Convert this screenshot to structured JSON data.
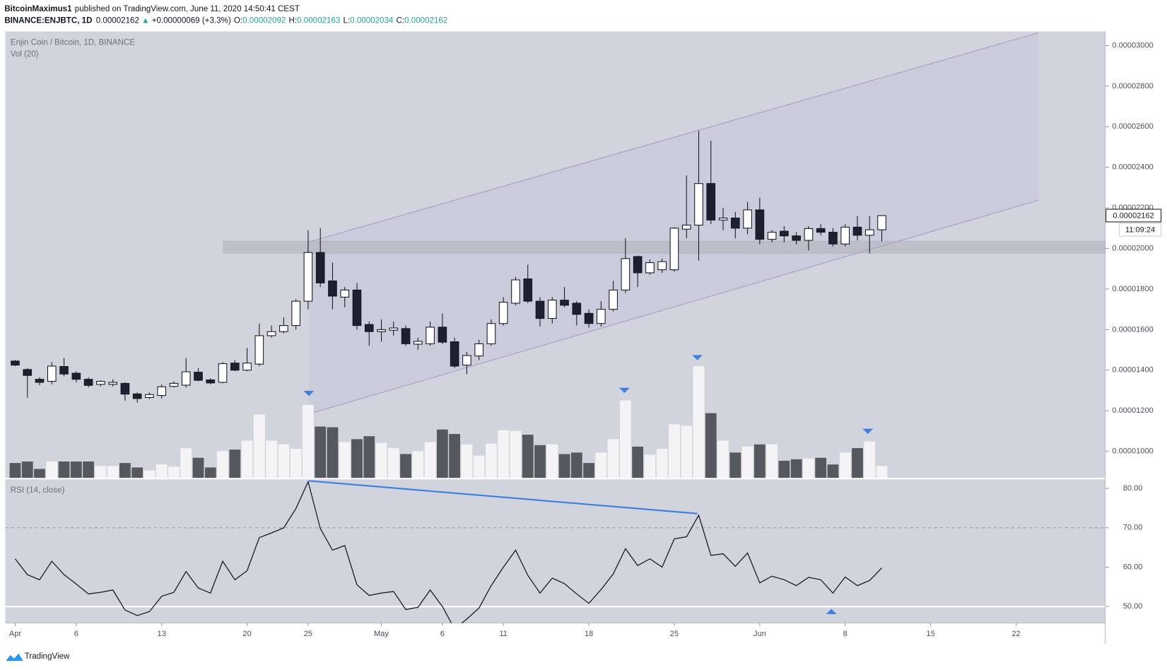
{
  "header": {
    "author": "BitcoinMaximus1",
    "published": "published on TradingView.com, June 11, 2020 14:50:41 CEST",
    "symbol": "BINANCE:ENJBTC, 1D",
    "last": "0.00002162",
    "arrow": "▲",
    "change": "+0.00000069 (+3.3%)",
    "quote": [
      {
        "label": "O:",
        "value": "0.00002092"
      },
      {
        "label": "H:",
        "value": "0.00002163"
      },
      {
        "label": "L:",
        "value": "0.00002034"
      },
      {
        "label": "C:",
        "value": "0.00002162"
      }
    ],
    "price_label": "0.00002162",
    "countdown": "11:09:24"
  },
  "footer": {
    "brand": "TradingView"
  },
  "chart_data": {
    "type": "candlestick",
    "title": "Enjin Coin / Bitcoin, 1D, BINANCE",
    "x": [
      "2020-04-01",
      "2020-04-02",
      "2020-04-03",
      "2020-04-04",
      "2020-04-05",
      "2020-04-06",
      "2020-04-07",
      "2020-04-08",
      "2020-04-09",
      "2020-04-10",
      "2020-04-11",
      "2020-04-12",
      "2020-04-13",
      "2020-04-14",
      "2020-04-15",
      "2020-04-16",
      "2020-04-17",
      "2020-04-18",
      "2020-04-19",
      "2020-04-20",
      "2020-04-21",
      "2020-04-22",
      "2020-04-23",
      "2020-04-24",
      "2020-04-25",
      "2020-04-26",
      "2020-04-27",
      "2020-04-28",
      "2020-04-29",
      "2020-04-30",
      "2020-05-01",
      "2020-05-02",
      "2020-05-03",
      "2020-05-04",
      "2020-05-05",
      "2020-05-06",
      "2020-05-07",
      "2020-05-08",
      "2020-05-09",
      "2020-05-10",
      "2020-05-11",
      "2020-05-12",
      "2020-05-13",
      "2020-05-14",
      "2020-05-15",
      "2020-05-16",
      "2020-05-17",
      "2020-05-18",
      "2020-05-19",
      "2020-05-20",
      "2020-05-21",
      "2020-05-22",
      "2020-05-23",
      "2020-05-24",
      "2020-05-25",
      "2020-05-26",
      "2020-05-27",
      "2020-05-28",
      "2020-05-29",
      "2020-05-30",
      "2020-05-31",
      "2020-06-01",
      "2020-06-02",
      "2020-06-03",
      "2020-06-04",
      "2020-06-05",
      "2020-06-06",
      "2020-06-07",
      "2020-06-08",
      "2020-06-09",
      "2020-06-10",
      "2020-06-11"
    ],
    "open": [
      1.445e-05,
      1.403e-05,
      1.355e-05,
      1.345e-05,
      1.418e-05,
      1.385e-05,
      1.355e-05,
      1.33e-05,
      1.33e-05,
      1.335e-05,
      1.283e-05,
      1.265e-05,
      1.275e-05,
      1.32e-05,
      1.326e-05,
      1.39e-05,
      1.352e-05,
      1.34e-05,
      1.435e-05,
      1.4e-05,
      1.43e-05,
      1.57e-05,
      1.59e-05,
      1.62e-05,
      1.74e-05,
      1.98e-05,
      1.84e-05,
      1.76e-05,
      1.795e-05,
      1.625e-05,
      1.59e-05,
      1.597e-05,
      1.605e-05,
      1.528e-05,
      1.53e-05,
      1.612e-05,
      1.54e-05,
      1.425e-05,
      1.47e-05,
      1.53e-05,
      1.63e-05,
      1.73e-05,
      1.85e-05,
      1.74e-05,
      1.655e-05,
      1.745e-05,
      1.73e-05,
      1.68e-05,
      1.63e-05,
      1.7e-05,
      1.795e-05,
      1.96e-05,
      1.88e-05,
      1.895e-05,
      1.895e-05,
      2.095e-05,
      2.115e-05,
      2.32e-05,
      2.14e-05,
      2.15e-05,
      2.1e-05,
      2.19e-05,
      2.045e-05,
      2.085e-05,
      2.062e-05,
      2.04e-05,
      2.098e-05,
      2.08e-05,
      2.022e-05,
      2.105e-05,
      2.065e-05,
      2.092e-05
    ],
    "high": [
      1.45e-05,
      1.41e-05,
      1.365e-05,
      1.44e-05,
      1.46e-05,
      1.395e-05,
      1.365e-05,
      1.35e-05,
      1.355e-05,
      1.34e-05,
      1.29e-05,
      1.29e-05,
      1.33e-05,
      1.345e-05,
      1.46e-05,
      1.41e-05,
      1.36e-05,
      1.44e-05,
      1.45e-05,
      1.51e-05,
      1.63e-05,
      1.62e-05,
      1.66e-05,
      1.75e-05,
      2.09e-05,
      2.1e-05,
      1.93e-05,
      1.81e-05,
      1.83e-05,
      1.64e-05,
      1.65e-05,
      1.64e-05,
      1.62e-05,
      1.56e-05,
      1.64e-05,
      1.68e-05,
      1.56e-05,
      1.49e-05,
      1.55e-05,
      1.65e-05,
      1.76e-05,
      1.86e-05,
      1.92e-05,
      1.76e-05,
      1.76e-05,
      1.81e-05,
      1.74e-05,
      1.7e-05,
      1.74e-05,
      1.84e-05,
      2.05e-05,
      1.965e-05,
      1.945e-05,
      1.95e-05,
      2.105e-05,
      2.36e-05,
      2.58e-05,
      2.53e-05,
      2.2e-05,
      2.18e-05,
      2.23e-05,
      2.25e-05,
      2.09e-05,
      2.11e-05,
      2.08e-05,
      2.11e-05,
      2.12e-05,
      2.1e-05,
      2.12e-05,
      2.16e-05,
      2.16e-05,
      2.163e-05
    ],
    "low": [
      1.42e-05,
      1.264e-05,
      1.325e-05,
      1.33e-05,
      1.37e-05,
      1.34e-05,
      1.315e-05,
      1.32e-05,
      1.32e-05,
      1.25e-05,
      1.24e-05,
      1.258e-05,
      1.26e-05,
      1.315e-05,
      1.315e-05,
      1.345e-05,
      1.33e-05,
      1.335e-05,
      1.395e-05,
      1.395e-05,
      1.42e-05,
      1.56e-05,
      1.58e-05,
      1.6e-05,
      1.7e-05,
      1.81e-05,
      1.7e-05,
      1.71e-05,
      1.6e-05,
      1.52e-05,
      1.54e-05,
      1.57e-05,
      1.52e-05,
      1.5e-05,
      1.52e-05,
      1.53e-05,
      1.41e-05,
      1.38e-05,
      1.45e-05,
      1.52e-05,
      1.62e-05,
      1.72e-05,
      1.73e-05,
      1.615e-05,
      1.63e-05,
      1.71e-05,
      1.62e-05,
      1.61e-05,
      1.615e-05,
      1.69e-05,
      1.78e-05,
      1.81e-05,
      1.87e-05,
      1.88e-05,
      1.885e-05,
      2.05e-05,
      1.94e-05,
      2.12e-05,
      2.09e-05,
      2.05e-05,
      2.07e-05,
      2.02e-05,
      2.03e-05,
      2.03e-05,
      2.02e-05,
      1.99e-05,
      2.065e-05,
      2.01e-05,
      2.01e-05,
      2.04e-05,
      1.975e-05,
      2.034e-05
    ],
    "close": [
      1.425e-05,
      1.374e-05,
      1.34e-05,
      1.42e-05,
      1.381e-05,
      1.355e-05,
      1.325e-05,
      1.345e-05,
      1.34e-05,
      1.282e-05,
      1.26e-05,
      1.28e-05,
      1.318e-05,
      1.335e-05,
      1.392e-05,
      1.35e-05,
      1.337e-05,
      1.432e-05,
      1.4e-05,
      1.435e-05,
      1.57e-05,
      1.59e-05,
      1.62e-05,
      1.74e-05,
      1.98e-05,
      1.83e-05,
      1.765e-05,
      1.795e-05,
      1.62e-05,
      1.59e-05,
      1.6e-05,
      1.608e-05,
      1.53e-05,
      1.542e-05,
      1.612e-05,
      1.538e-05,
      1.42e-05,
      1.472e-05,
      1.53e-05,
      1.63e-05,
      1.735e-05,
      1.845e-05,
      1.74e-05,
      1.655e-05,
      1.745e-05,
      1.72e-05,
      1.675e-05,
      1.63e-05,
      1.7e-05,
      1.795e-05,
      1.95e-05,
      1.88e-05,
      1.93e-05,
      1.935e-05,
      2.1e-05,
      2.115e-05,
      2.32e-05,
      2.14e-05,
      2.15e-05,
      2.1e-05,
      2.19e-05,
      2.045e-05,
      2.08e-05,
      2.062e-05,
      2.04e-05,
      2.098e-05,
      2.08e-05,
      2.022e-05,
      2.105e-05,
      2.065e-05,
      2.092e-05,
      2.162e-05
    ],
    "up_color": "#ffffff",
    "down_color": "#1e2030",
    "xlim": [
      "2020-03-31",
      "2020-06-29"
    ],
    "xticks": [
      {
        "value": "2020-04-01",
        "label": "Apr"
      },
      {
        "value": "2020-04-06",
        "label": "6"
      },
      {
        "value": "2020-04-13",
        "label": "13"
      },
      {
        "value": "2020-04-20",
        "label": "20"
      },
      {
        "value": "2020-04-25",
        "label": "25"
      },
      {
        "value": "2020-05-01",
        "label": "May"
      },
      {
        "value": "2020-05-06",
        "label": "6"
      },
      {
        "value": "2020-05-11",
        "label": "11"
      },
      {
        "value": "2020-05-18",
        "label": "18"
      },
      {
        "value": "2020-05-25",
        "label": "25"
      },
      {
        "value": "2020-06-01",
        "label": "Jun"
      },
      {
        "value": "2020-06-08",
        "label": "8"
      },
      {
        "value": "2020-06-15",
        "label": "15"
      },
      {
        "value": "2020-06-22",
        "label": "22"
      }
    ],
    "ylim": [
      8.69e-06,
      3.07e-05
    ],
    "yticks": [
      {
        "value": 3e-05,
        "label": "0.00003000"
      },
      {
        "value": 2.8e-05,
        "label": "0.00002800"
      },
      {
        "value": 2.6e-05,
        "label": "0.00002600"
      },
      {
        "value": 2.4e-05,
        "label": "0.00002400"
      },
      {
        "value": 2.2e-05,
        "label": "0.00002200"
      },
      {
        "value": 2e-05,
        "label": "0.00002000"
      },
      {
        "value": 1.8e-05,
        "label": "0.00001800"
      },
      {
        "value": 1.6e-05,
        "label": "0.00001600"
      },
      {
        "value": 1.4e-05,
        "label": "0.00001400"
      },
      {
        "value": 1.2e-05,
        "label": "0.00001200"
      },
      {
        "value": 1e-05,
        "label": "0.00001000"
      }
    ],
    "volume": {
      "title": "Vol (20)",
      "up_color": "#f4f4f6",
      "down_color": "#55585f",
      "values": [
        20,
        22,
        12,
        22,
        22,
        22,
        22,
        16,
        16,
        20,
        14,
        10,
        18,
        15,
        40,
        27,
        14,
        36,
        38,
        50,
        85,
        50,
        45,
        39,
        98,
        69,
        68,
        48,
        52,
        56,
        47,
        40,
        32,
        36,
        48,
        65,
        59,
        45,
        30,
        46,
        64,
        63,
        58,
        44,
        45,
        32,
        34,
        20,
        34,
        52,
        104,
        42,
        31,
        39,
        72,
        70,
        150,
        87,
        50,
        34,
        42,
        45,
        45,
        23,
        25,
        26,
        27,
        18,
        34,
        40,
        49,
        16
      ]
    },
    "rsi": {
      "title": "RSI (14, close)",
      "color": "#131722",
      "values": [
        62.1,
        58.1,
        56.8,
        61.5,
        58.1,
        55.7,
        53.2,
        53.6,
        54.2,
        49.1,
        47.7,
        48.7,
        52.6,
        53.6,
        58.9,
        54.7,
        53.4,
        61.5,
        56.8,
        59.1,
        67.5,
        68.7,
        70.0,
        74.9,
        81.7,
        69.8,
        64.3,
        65.5,
        55.5,
        52.8,
        53.4,
        53.8,
        49.2,
        49.8,
        54.2,
        50.0,
        44.3,
        46.8,
        49.6,
        55.3,
        60.0,
        64.3,
        57.9,
        53.4,
        57.2,
        55.8,
        53.2,
        50.8,
        54.3,
        58.3,
        64.7,
        60.4,
        62.1,
        60.0,
        67.2,
        67.7,
        73.2,
        63.0,
        63.4,
        60.2,
        63.6,
        56.0,
        57.7,
        56.8,
        55.3,
        57.4,
        56.8,
        53.4,
        57.5,
        55.3,
        56.6,
        59.8
      ],
      "ylim": [
        45.8,
        82.5
      ],
      "yticks": [
        {
          "value": 80,
          "label": "80.00"
        },
        {
          "value": 70,
          "label": "70.00"
        },
        {
          "value": 60,
          "label": "60.00"
        },
        {
          "value": 50,
          "label": "50.00"
        }
      ]
    }
  }
}
